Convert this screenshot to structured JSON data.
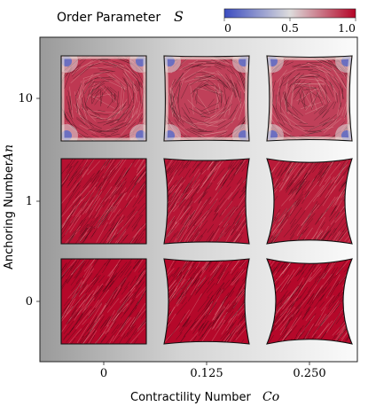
{
  "chart_data": {
    "type": "heatmap",
    "title": "Order Parameter",
    "title_symbol": "S",
    "colorbar": {
      "colormap": "coolwarm",
      "range": [
        0,
        1.0
      ],
      "ticks": [
        "0",
        "0.5",
        "1.0"
      ],
      "colors": [
        "#3b4cc0",
        "#dddcdc",
        "#b40426"
      ]
    },
    "xlabel": "Contractility Number",
    "xlabel_symbol": "Co",
    "ylabel": "Anchoring Number",
    "ylabel_symbol": "An",
    "x_categories": [
      "0",
      "0.125",
      "0.250"
    ],
    "y_categories": [
      "10",
      "1",
      "0"
    ],
    "cells": [
      {
        "An": 10,
        "Co": 0,
        "mean_S": 0.88,
        "boundary_defects": true
      },
      {
        "An": 10,
        "Co": 0.125,
        "mean_S": 0.86,
        "boundary_defects": true
      },
      {
        "An": 10,
        "Co": 0.25,
        "mean_S": 0.86,
        "boundary_defects": true
      },
      {
        "An": 1,
        "Co": 0,
        "mean_S": 0.97,
        "boundary_defects": false
      },
      {
        "An": 1,
        "Co": 0.125,
        "mean_S": 0.96,
        "boundary_defects": false
      },
      {
        "An": 1,
        "Co": 0.25,
        "mean_S": 0.95,
        "boundary_defects": false
      },
      {
        "An": 0,
        "Co": 0,
        "mean_S": 0.99,
        "boundary_defects": false
      },
      {
        "An": 0,
        "Co": 0.125,
        "mean_S": 0.99,
        "boundary_defects": false
      },
      {
        "An": 0,
        "Co": 0.25,
        "mean_S": 0.99,
        "boundary_defects": false
      }
    ]
  }
}
